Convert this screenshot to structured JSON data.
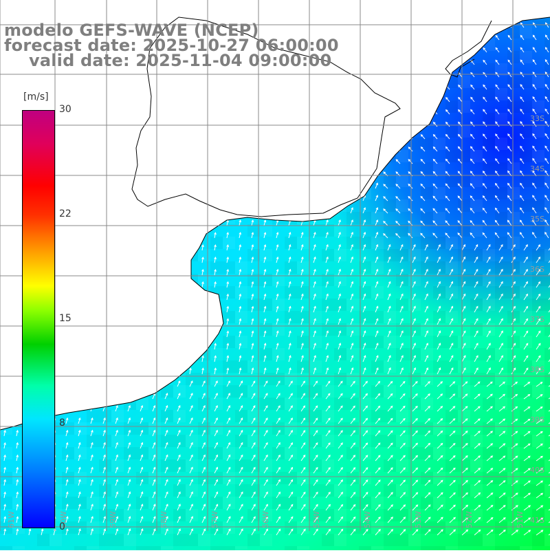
{
  "title": {
    "line1": "modelo GEFS-WAVE (NCEP)",
    "line2": "forecast date: 2025-10-27 06:00:00",
    "line3": "valid date: 2025-11-04 09:00:00"
  },
  "colorbar": {
    "unit": "[m/s]",
    "ticks": [
      "30",
      "22",
      "15",
      "8",
      "0"
    ],
    "tick_values": [
      30,
      22,
      15,
      8,
      0
    ],
    "min": 0,
    "max": 30,
    "colors": [
      "#0000ff",
      "#0080ff",
      "#00e6ff",
      "#00ffaa",
      "#00d000",
      "#8cff00",
      "#ffff00",
      "#ffa000",
      "#ff3000",
      "#ff0000",
      "#e0005a",
      "#c00080"
    ]
  },
  "map": {
    "lat_labels": [
      "33S",
      "34S",
      "35S",
      "36S",
      "37S",
      "38S",
      "39S",
      "40S",
      "41S"
    ],
    "lon_labels": [
      "61W",
      "60W",
      "59W",
      "58W",
      "57W",
      "56W",
      "55W",
      "54W",
      "53W",
      "52W",
      "51W"
    ],
    "ocean_color": "#00d8ff",
    "land_color": "#ffffff"
  }
}
